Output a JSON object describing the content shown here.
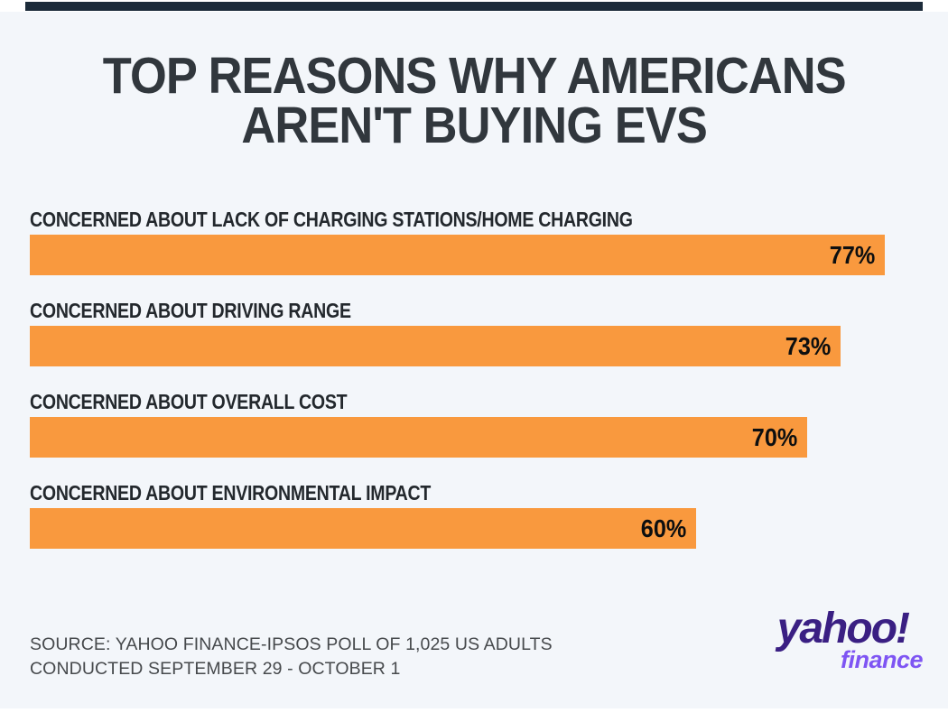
{
  "page": {
    "background_color": "#f3f6fa",
    "accent_rule_color": "#1c2b3a"
  },
  "title": {
    "line1": "TOP REASONS WHY AMERICANS",
    "line2": "AREN'T BUYING EVS"
  },
  "chart_data": {
    "type": "bar",
    "orientation": "horizontal",
    "title": "Top reasons why Americans aren't buying EVs",
    "categories": [
      "CONCERNED ABOUT LACK OF CHARGING STATIONS/HOME CHARGING",
      "CONCERNED ABOUT DRIVING RANGE",
      "CONCERNED ABOUT OVERALL COST",
      "CONCERNED ABOUT ENVIRONMENTAL IMPACT"
    ],
    "values": [
      77,
      73,
      70,
      60
    ],
    "value_labels": [
      "77%",
      "73%",
      "70%",
      "60%"
    ],
    "bar_color": "#F9993E",
    "value_label_position": "inside-end",
    "axes_hidden": true,
    "grid": false,
    "legend": false
  },
  "source": {
    "line1": "SOURCE: YAHOO FINANCE-IPSOS POLL OF 1,025 US ADULTS",
    "line2": "CONDUCTED SEPTEMBER 29 - OCTOBER 1"
  },
  "logo": {
    "brand": "yahoo!",
    "product": "finance",
    "brand_color": "#3A1F83",
    "product_color": "#7E55F3"
  }
}
